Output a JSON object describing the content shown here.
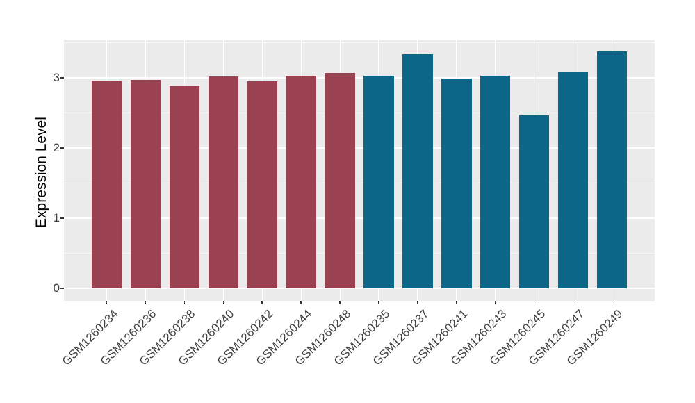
{
  "figure": {
    "background": "#FFFFFF",
    "panel_background": "#EBEBEB",
    "gridline_color": "#FFFFFF",
    "tick_mark_color": "#333333",
    "axis_text_color": "#404040",
    "axis_title_color": "#000000"
  },
  "chart_data": {
    "type": "bar",
    "title": "",
    "xlabel": "",
    "ylabel": "Expression Level",
    "grid": "on",
    "legend": "none",
    "x_tick_angle_deg": 45,
    "ylim": [
      -0.17,
      3.55
    ],
    "yticks": [
      0,
      1,
      2,
      3
    ],
    "ytick_labels": [
      "0",
      "1",
      "2",
      "3"
    ],
    "yticks_minor": [
      0.5,
      1.5,
      2.5,
      3.5
    ],
    "categories": [
      "GSM1260234",
      "GSM1260236",
      "GSM1260238",
      "GSM1260240",
      "GSM1260242",
      "GSM1260244",
      "GSM1260248",
      "GSM1260235",
      "GSM1260237",
      "GSM1260241",
      "GSM1260243",
      "GSM1260245",
      "GSM1260247",
      "GSM1260249"
    ],
    "values": [
      2.96,
      2.97,
      2.88,
      3.02,
      2.95,
      3.03,
      3.07,
      3.03,
      3.34,
      2.99,
      3.03,
      2.47,
      3.08,
      3.38
    ],
    "bar_groups": [
      0,
      0,
      0,
      0,
      0,
      0,
      0,
      1,
      1,
      1,
      1,
      1,
      1,
      1
    ],
    "group_colors": [
      "#9B4252",
      "#0B6687"
    ]
  }
}
